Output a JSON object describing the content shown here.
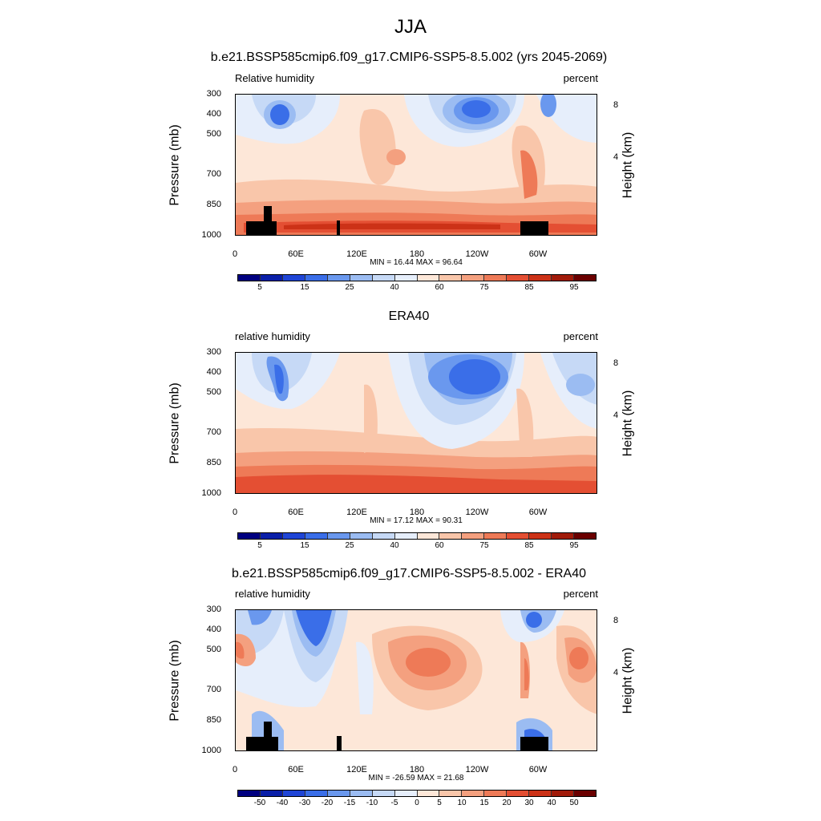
{
  "figure": {
    "main_title": "JJA"
  },
  "panels": [
    {
      "title": "b.e21.BSSP585cmip6.f09_g17.CMIP6-SSP5-8.5.002 (yrs 2045-2069)",
      "left_label": "Relative humidity",
      "right_label": "percent",
      "ylabel": "Pressure (mb)",
      "ylabel_right": "Height (km)",
      "minmax": "MIN =  16.44  MAX =  96.64",
      "colorbar_labels": [
        "5",
        "15",
        "25",
        "40",
        "60",
        "75",
        "85",
        "95"
      ]
    },
    {
      "title": "ERA40",
      "left_label": "relative humidity",
      "right_label": "percent",
      "ylabel": "Pressure (mb)",
      "ylabel_right": "Height (km)",
      "minmax": "MIN =  17.12  MAX =  90.31",
      "colorbar_labels": [
        "5",
        "15",
        "25",
        "40",
        "60",
        "75",
        "85",
        "95"
      ]
    },
    {
      "title": "b.e21.BSSP585cmip6.f09_g17.CMIP6-SSP5-8.5.002 - ERA40",
      "left_label": "relative humidity",
      "right_label": "percent",
      "ylabel": "Pressure (mb)",
      "ylabel_right": "Height (km)",
      "minmax": "MIN = -26.59  MAX =  21.68",
      "colorbar_labels": [
        "-50",
        "-40",
        "-30",
        "-20",
        "-15",
        "-10",
        "-5",
        "0",
        "5",
        "10",
        "15",
        "20",
        "30",
        "40",
        "50"
      ]
    }
  ],
  "axes": {
    "y_ticks": [
      "300",
      "400",
      "500",
      "700",
      "850",
      "1000"
    ],
    "x_ticks": [
      "0",
      "60E",
      "120E",
      "180",
      "120W",
      "60W"
    ],
    "height_ticks": [
      "8",
      "4"
    ]
  },
  "colors": {
    "abs_scale": [
      "#000080",
      "#0a1fa8",
      "#1f45d6",
      "#3a6ee8",
      "#6a98ee",
      "#9bbcf2",
      "#c6d9f6",
      "#e6eefb",
      "#fde7d8",
      "#f9c6aa",
      "#f4a07f",
      "#ee7a57",
      "#e44f33",
      "#cc3217",
      "#a11b0a",
      "#6b0000"
    ],
    "diff_scale": [
      "#000080",
      "#0a1fa8",
      "#1f45d6",
      "#3a6ee8",
      "#6a98ee",
      "#9bbcf2",
      "#c6d9f6",
      "#e6eefb",
      "#fde7d8",
      "#f9c6aa",
      "#f4a07f",
      "#ee7a57",
      "#e44f33",
      "#cc3217",
      "#a11b0a",
      "#6b0000"
    ]
  },
  "chart_data": [
    {
      "type": "heatmap",
      "title": "b.e21.BSSP585cmip6.f09_g17.CMIP6-SSP5-8.5.002 (yrs 2045-2069)",
      "variable": "Relative humidity",
      "units": "percent",
      "xlabel": "",
      "ylabel": "Pressure (mb)",
      "x_ticks": [
        "0",
        "60E",
        "120E",
        "180",
        "120W",
        "60W"
      ],
      "y_ticks": [
        300,
        400,
        500,
        700,
        850,
        1000
      ],
      "levels": [
        5,
        10,
        15,
        20,
        25,
        30,
        40,
        50,
        60,
        70,
        75,
        80,
        85,
        90,
        95
      ],
      "min": 16.44,
      "max": 96.64
    },
    {
      "type": "heatmap",
      "title": "ERA40",
      "variable": "relative humidity",
      "units": "percent",
      "xlabel": "",
      "ylabel": "Pressure (mb)",
      "x_ticks": [
        "0",
        "60E",
        "120E",
        "180",
        "120W",
        "60W"
      ],
      "y_ticks": [
        300,
        400,
        500,
        700,
        850,
        1000
      ],
      "levels": [
        5,
        10,
        15,
        20,
        25,
        30,
        40,
        50,
        60,
        70,
        75,
        80,
        85,
        90,
        95
      ],
      "min": 17.12,
      "max": 90.31
    },
    {
      "type": "heatmap",
      "title": "b.e21.BSSP585cmip6.f09_g17.CMIP6-SSP5-8.5.002 - ERA40",
      "variable": "relative humidity",
      "units": "percent",
      "xlabel": "",
      "ylabel": "Pressure (mb)",
      "x_ticks": [
        "0",
        "60E",
        "120E",
        "180",
        "120W",
        "60W"
      ],
      "y_ticks": [
        300,
        400,
        500,
        700,
        850,
        1000
      ],
      "levels": [
        -50,
        -40,
        -30,
        -20,
        -15,
        -10,
        -5,
        0,
        5,
        10,
        15,
        20,
        30,
        40,
        50
      ],
      "min": -26.59,
      "max": 21.68
    }
  ]
}
